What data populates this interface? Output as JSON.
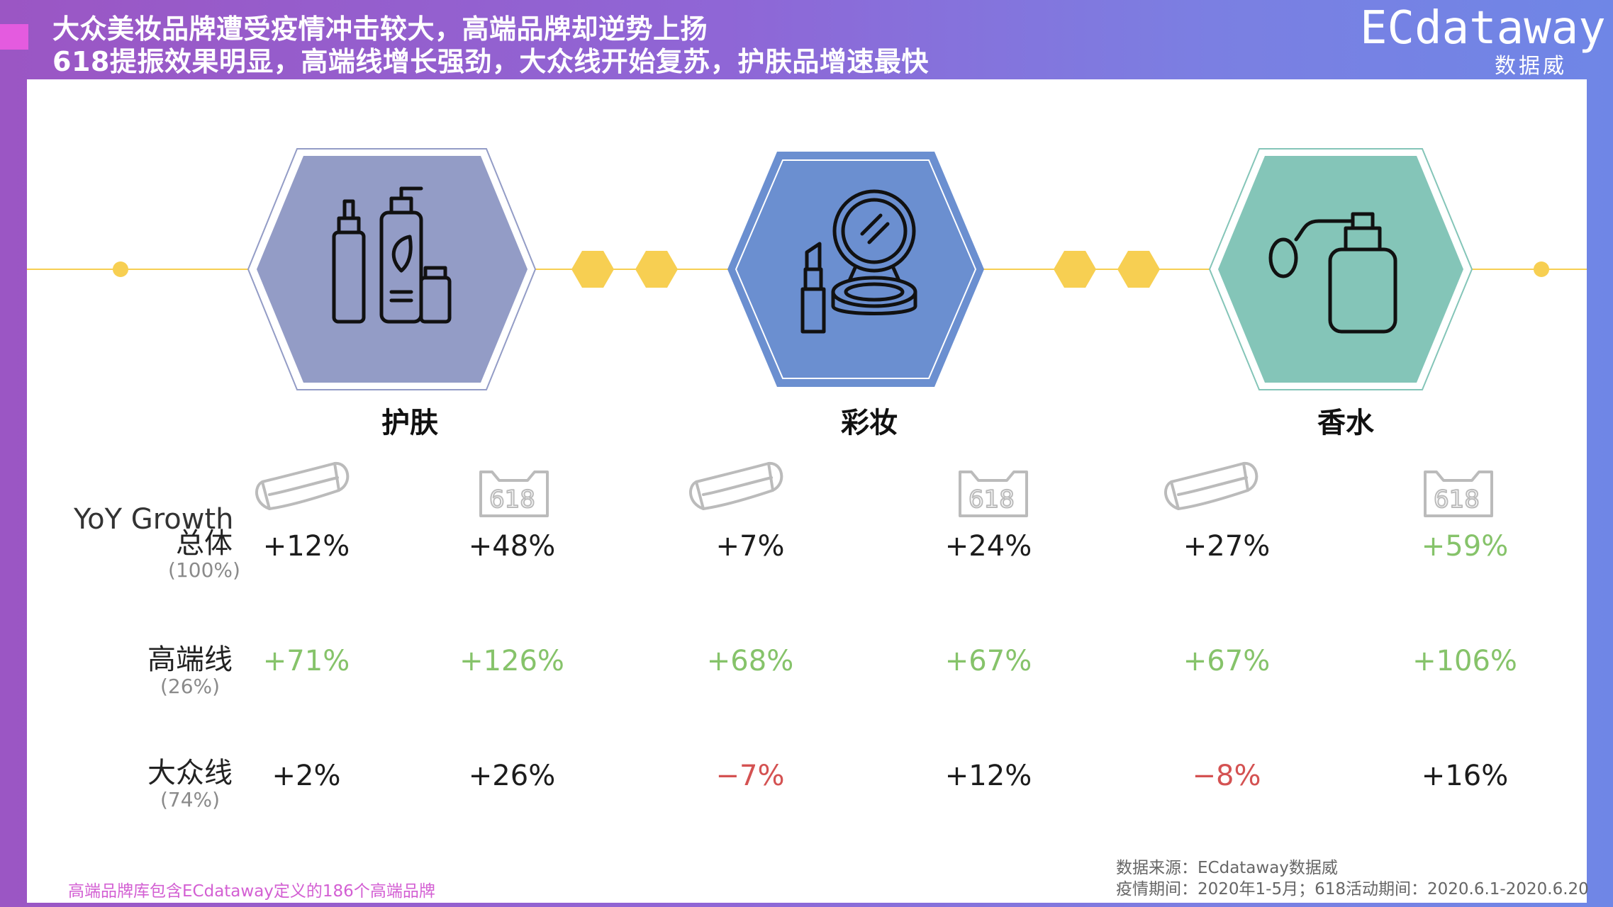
{
  "header": {
    "title_line1": "大众美妆品牌遭受疫情冲击较大，高端品牌却逆势上扬",
    "title_line2": "618提振效果明显，高端线增长强劲，大众线开始复苏，护肤品增速最快",
    "logo_main": "ECdataway",
    "logo_sub": "数据威"
  },
  "colors": {
    "skincare_hex": "#939cc6",
    "makeup_hex": "#6b8fd0",
    "fragrance_hex": "#84c5b8",
    "connector_yellow": "#f7cf52",
    "green_value": "#86c36a",
    "red_value": "#d45252"
  },
  "categories": [
    {
      "label": "护肤",
      "icon": "skincare-bottles-icon"
    },
    {
      "label": "彩妆",
      "icon": "compact-lipstick-icon"
    },
    {
      "label": "香水",
      "icon": "perfume-bottle-icon"
    }
  ],
  "period_icons": {
    "epidemic": "face-mask-icon",
    "promo": "618-badge-icon"
  },
  "yoy_title": "YoY Growth",
  "rows": [
    {
      "name": "总体",
      "share": "(100%)",
      "values": [
        {
          "text": "+12%",
          "tone": "black"
        },
        {
          "text": "+48%",
          "tone": "black"
        },
        {
          "text": "+7%",
          "tone": "black"
        },
        {
          "text": "+24%",
          "tone": "black"
        },
        {
          "text": "+27%",
          "tone": "black"
        },
        {
          "text": "+59%",
          "tone": "green"
        }
      ]
    },
    {
      "name": "高端线",
      "share": "(26%)",
      "values": [
        {
          "text": "+71%",
          "tone": "green"
        },
        {
          "text": "+126%",
          "tone": "green"
        },
        {
          "text": "+68%",
          "tone": "green"
        },
        {
          "text": "+67%",
          "tone": "green"
        },
        {
          "text": "+67%",
          "tone": "green"
        },
        {
          "text": "+106%",
          "tone": "green"
        }
      ]
    },
    {
      "name": "大众线",
      "share": "(74%)",
      "values": [
        {
          "text": "+2%",
          "tone": "black"
        },
        {
          "text": "+26%",
          "tone": "black"
        },
        {
          "text": "−7%",
          "tone": "red"
        },
        {
          "text": "+12%",
          "tone": "black"
        },
        {
          "text": "−8%",
          "tone": "red"
        },
        {
          "text": "+16%",
          "tone": "black"
        }
      ]
    }
  ],
  "footnote": "高端品牌库包含ECdataway定义的186个高端品牌",
  "source": {
    "line1": "数据来源：ECdataway数据威",
    "line2": "疫情期间：2020年1-5月；618活动期间：2020.6.1-2020.6.20"
  }
}
